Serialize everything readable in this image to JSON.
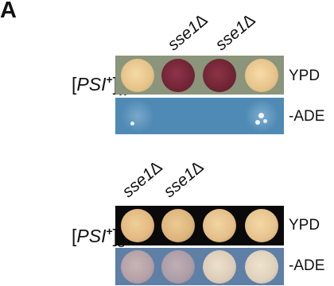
{
  "panel_label": "A",
  "top_panel": {
    "strain": {
      "bracket_open": "[",
      "name": "PSI",
      "sup": "+",
      "bracket_close": "]",
      "sub": "w"
    },
    "column_labels": [
      "sse1∆",
      "sse1∆"
    ],
    "plates": [
      {
        "label": "YPD",
        "bg": "#8a957b",
        "spots": [
          "#e8c98f",
          "#7d2a3a",
          "#7a2a3a",
          "#ecc88c"
        ]
      },
      {
        "label": "-ADE",
        "bg": "#4f8ab5",
        "spots": [
          "faint",
          "none",
          "none",
          "faint-colonies"
        ]
      }
    ]
  },
  "bottom_panel": {
    "strain": {
      "bracket_open": "[",
      "name": "PSI",
      "sup": "+",
      "bracket_close": "]",
      "sub": "s"
    },
    "column_labels": [
      "sse1∆",
      "sse1∆"
    ],
    "plates": [
      {
        "label": "YPD",
        "bg": "#0a0a0a",
        "spots": [
          "#e4bc84",
          "#e0b880",
          "#e6c08a",
          "#e8c48e"
        ]
      },
      {
        "label": "-ADE",
        "bg": "#5e7fa6",
        "spots": [
          "#b9a6a8",
          "#b0a2a8",
          "#ddd0bd",
          "#e2d5c0"
        ]
      }
    ]
  }
}
